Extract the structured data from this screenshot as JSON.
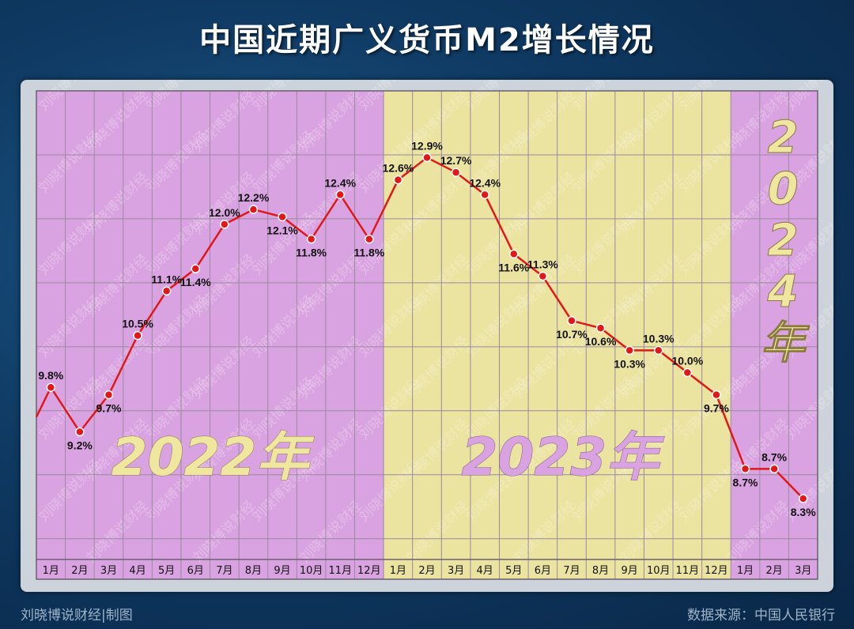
{
  "title": "中国近期广义货币M2增长情况",
  "footer": {
    "left": "刘晓博说财经|制图",
    "right": "数据来源：中国人民银行"
  },
  "watermark": "刘晓博说财经",
  "chart_data": {
    "type": "line",
    "categories": [
      "1月",
      "2月",
      "3月",
      "4月",
      "5月",
      "6月",
      "7月",
      "8月",
      "9月",
      "10月",
      "11月",
      "12月",
      "1月",
      "2月",
      "3月",
      "4月",
      "5月",
      "6月",
      "7月",
      "8月",
      "9月",
      "10月",
      "11月",
      "12月",
      "1月",
      "2月",
      "3月"
    ],
    "series": [
      {
        "values": [
          9.8,
          9.2,
          9.7,
          10.5,
          11.1,
          11.4,
          12.0,
          12.2,
          12.1,
          11.8,
          12.4,
          11.8,
          12.6,
          12.9,
          12.7,
          12.4,
          11.6,
          11.3,
          10.7,
          10.6,
          10.3,
          10.3,
          10.0,
          9.7,
          8.7,
          8.7,
          8.3
        ],
        "labels": [
          "9.8%",
          "9.2%",
          "9.7%",
          "10.5%",
          "11.1%",
          "11.4%",
          "12.0%",
          "12.2%",
          "12.1%",
          "11.8%",
          "12.4%",
          "11.8%",
          "12.6%",
          "12.9%",
          "12.7%",
          "12.4%",
          "11.6%",
          "11.3%",
          "10.7%",
          "10.6%",
          "10.3%",
          "10.3%",
          "10.0%",
          "9.7%",
          "8.7%",
          "8.7%",
          "8.3%"
        ],
        "label_pos": [
          "above",
          "below",
          "below",
          "above",
          "above",
          "below",
          "above",
          "above",
          "below",
          "below",
          "above",
          "below",
          "above",
          "above",
          "above",
          "above",
          "below",
          "above",
          "below",
          "below",
          "below",
          "above",
          "above",
          "below",
          "below",
          "above",
          "below"
        ],
        "color": "#e01818"
      }
    ],
    "lead_in_value": 9.4,
    "periods": [
      {
        "label": "2022年",
        "start": 0,
        "end": 12,
        "color": "#d9a2e0",
        "text_color": "#efe6a0"
      },
      {
        "label": "2023年",
        "start": 12,
        "end": 24,
        "color": "#ebe3a0",
        "text_color": "#d9a2e0"
      },
      {
        "label": "2024年",
        "start": 24,
        "end": 27,
        "color": "#d9a2e0",
        "text_color": "#efe6a0"
      }
    ],
    "ylim": [
      7.5,
      13.8
    ],
    "grid": true
  }
}
